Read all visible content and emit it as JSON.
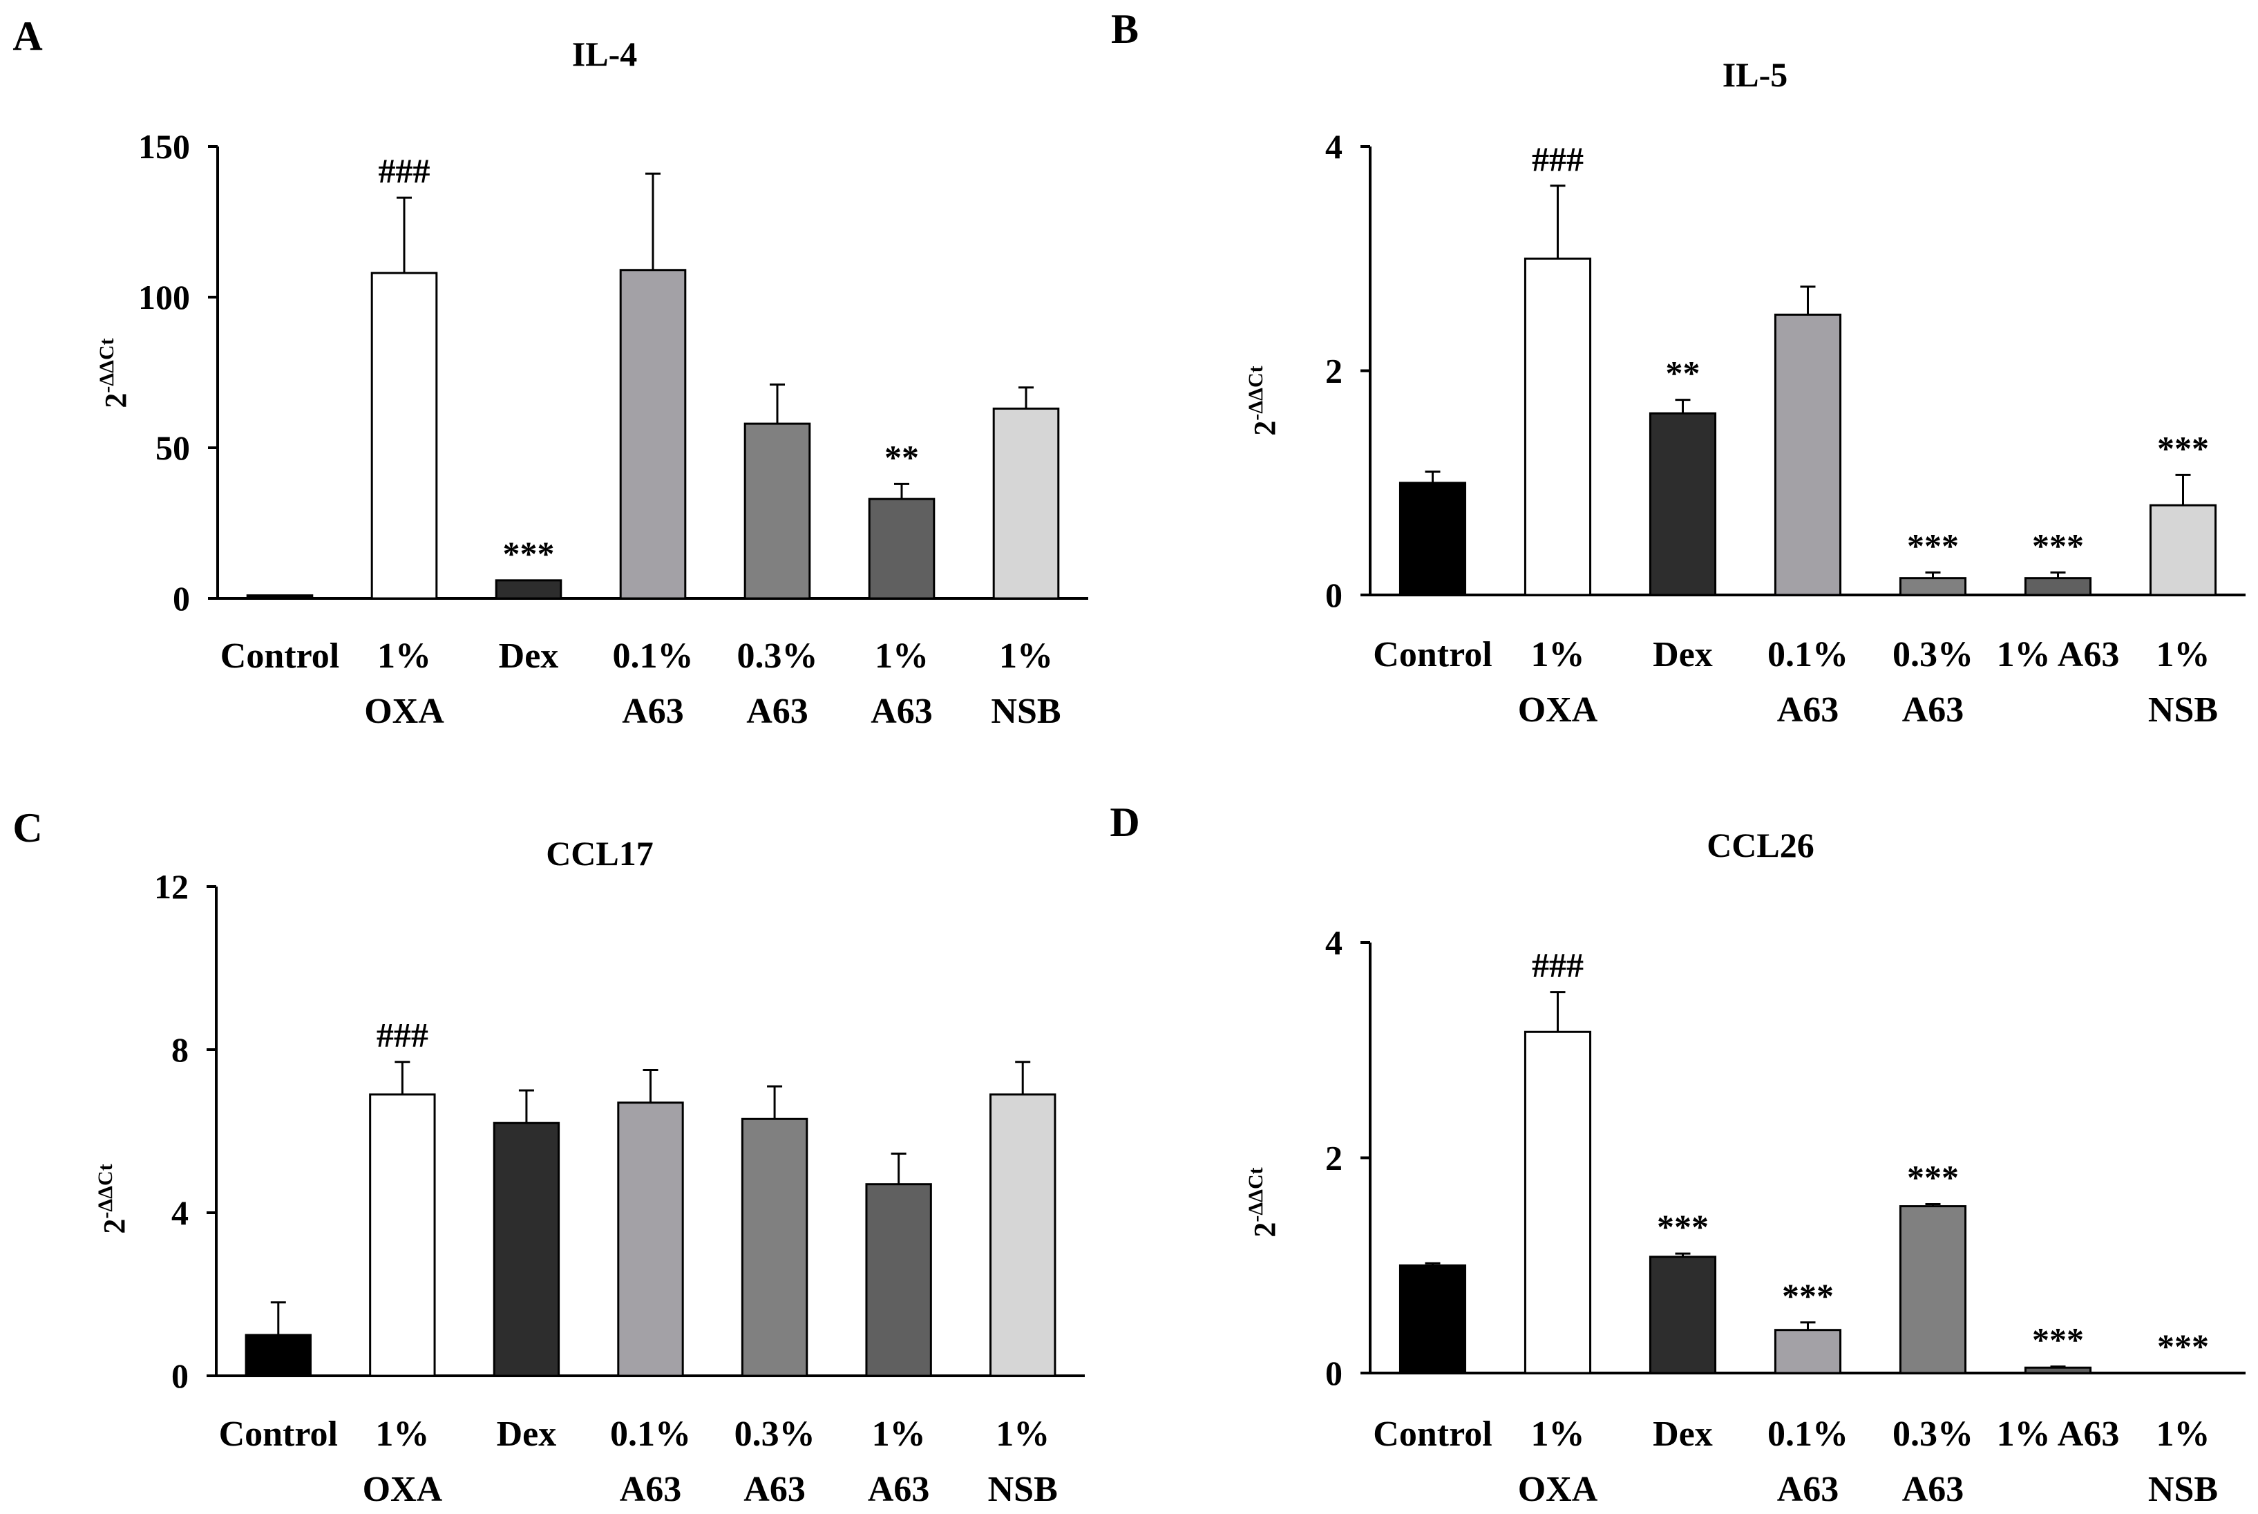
{
  "chart_data": [
    {
      "panel": "A",
      "type": "bar",
      "title": "IL-4",
      "ylabel": "2",
      "ylabel_sup": "-ΔΔCt",
      "ylim": [
        0,
        150
      ],
      "yticks": [
        0,
        50,
        100,
        150
      ],
      "categories": [
        [
          "Control"
        ],
        [
          "1%",
          "OXA"
        ],
        [
          "Dex"
        ],
        [
          "0.1%",
          "A63"
        ],
        [
          "0.3%",
          "A63"
        ],
        [
          "1%",
          "A63"
        ],
        [
          "1%",
          "NSB"
        ]
      ],
      "values": [
        1,
        108,
        6,
        109,
        58,
        33,
        63
      ],
      "errors": [
        0,
        25,
        0,
        32,
        13,
        5,
        7
      ],
      "annotations": [
        "",
        "###",
        "***",
        "",
        "",
        "**",
        ""
      ],
      "colors": [
        "#000000",
        "#ffffff",
        "#2d2d2d",
        "#a3a1a6",
        "#808080",
        "#606060",
        "#d6d6d6"
      ]
    },
    {
      "panel": "B",
      "type": "bar",
      "title": "IL-5",
      "ylabel": "2",
      "ylabel_sup": "-ΔΔCt",
      "ylim": [
        0,
        4
      ],
      "yticks": [
        0,
        2,
        4
      ],
      "categories": [
        [
          "Control"
        ],
        [
          "1%",
          "OXA"
        ],
        [
          "Dex"
        ],
        [
          "0.1%",
          "A63"
        ],
        [
          "0.3%",
          "A63"
        ],
        [
          "1% A63"
        ],
        [
          "1%",
          "NSB"
        ]
      ],
      "values": [
        1.0,
        3.0,
        1.62,
        2.5,
        0.15,
        0.15,
        0.8
      ],
      "errors": [
        0.1,
        0.65,
        0.12,
        0.25,
        0.05,
        0.05,
        0.27
      ],
      "annotations": [
        "",
        "###",
        "**",
        "",
        "***",
        "***",
        "***"
      ],
      "colors": [
        "#000000",
        "#ffffff",
        "#2d2d2d",
        "#a3a1a6",
        "#808080",
        "#606060",
        "#d6d6d6"
      ]
    },
    {
      "panel": "C",
      "type": "bar",
      "title": "CCL17",
      "ylabel": "2",
      "ylabel_sup": "-ΔΔCt",
      "ylim": [
        0,
        12
      ],
      "yticks": [
        0,
        4,
        8,
        12
      ],
      "categories": [
        [
          "Control"
        ],
        [
          "1%",
          "OXA"
        ],
        [
          "Dex"
        ],
        [
          "0.1%",
          "A63"
        ],
        [
          "0.3%",
          "A63"
        ],
        [
          "1%",
          "A63"
        ],
        [
          "1%",
          "NSB"
        ]
      ],
      "values": [
        1.0,
        6.9,
        6.2,
        6.7,
        6.3,
        4.7,
        6.9
      ],
      "errors": [
        0.8,
        0.8,
        0.8,
        0.8,
        0.8,
        0.75,
        0.8
      ],
      "annotations": [
        "",
        "###",
        "",
        "",
        "",
        "",
        ""
      ],
      "colors": [
        "#000000",
        "#ffffff",
        "#2d2d2d",
        "#a3a1a6",
        "#808080",
        "#606060",
        "#d6d6d6"
      ]
    },
    {
      "panel": "D",
      "type": "bar",
      "title": "CCL26",
      "ylabel": "2",
      "ylabel_sup": "-ΔΔCt",
      "ylim": [
        0,
        4
      ],
      "yticks": [
        0,
        2,
        4
      ],
      "categories": [
        [
          "Control"
        ],
        [
          "1%",
          "OXA"
        ],
        [
          "Dex"
        ],
        [
          "0.1%",
          "A63"
        ],
        [
          "0.3%",
          "A63"
        ],
        [
          "1% A63"
        ],
        [
          "1%",
          "NSB"
        ]
      ],
      "values": [
        1.0,
        3.17,
        1.08,
        0.4,
        1.55,
        0.05,
        0.0
      ],
      "errors": [
        0.02,
        0.37,
        0.03,
        0.07,
        0.02,
        0.01,
        0.0
      ],
      "annotations": [
        "",
        "###",
        "***",
        "***",
        "***",
        "***",
        "***"
      ],
      "colors": [
        "#000000",
        "#ffffff",
        "#2d2d2d",
        "#a3a1a6",
        "#808080",
        "#606060",
        "#d6d6d6"
      ]
    }
  ]
}
